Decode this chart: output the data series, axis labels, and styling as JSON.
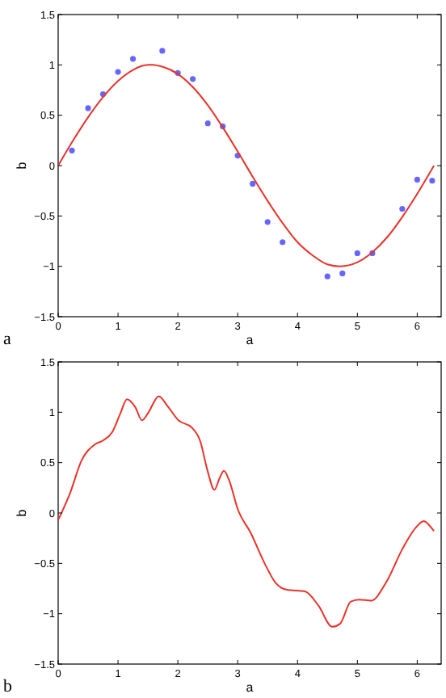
{
  "chart_data": [
    {
      "type": "scatter",
      "xlabel": "a",
      "ylabel": "b",
      "xlim": [
        0,
        6.4
      ],
      "ylim": [
        -1.5,
        1.5
      ],
      "xticks": [
        0,
        1,
        2,
        3,
        4,
        5,
        6
      ],
      "yticks": [
        -1.5,
        -1,
        -0.5,
        0,
        0.5,
        1,
        1.5
      ],
      "grid": false,
      "annotations": [
        "a"
      ],
      "series": [
        {
          "color": "#6666ff",
          "marker": "circle",
          "x": [
            0.23,
            0.5,
            0.75,
            1,
            1.25,
            1.74,
            2,
            2.25,
            2.5,
            2.75,
            3,
            3.25,
            3.5,
            3.75,
            4.5,
            4.75,
            5,
            5.25,
            5.75,
            6,
            6.25
          ],
          "values": [
            0.15,
            0.57,
            0.71,
            0.93,
            1.06,
            1.14,
            0.92,
            0.86,
            0.42,
            0.39,
            0.1,
            -0.18,
            -0.56,
            -0.76,
            -1.1,
            -1.07,
            -0.87,
            -0.87,
            -0.43,
            -0.14,
            -0.15
          ]
        },
        {
          "type": "line",
          "color": "#e8332a",
          "x": [
            0,
            0.25,
            0.5,
            0.75,
            1,
            1.25,
            1.5,
            1.57,
            1.75,
            2,
            2.25,
            2.5,
            2.75,
            3,
            3.25,
            3.5,
            3.75,
            4,
            4.25,
            4.5,
            4.71,
            5,
            5.25,
            5.5,
            5.75,
            6,
            6.28
          ],
          "values": [
            0,
            0.25,
            0.48,
            0.68,
            0.84,
            0.95,
            1,
            1,
            0.98,
            0.91,
            0.78,
            0.6,
            0.38,
            0.14,
            -0.11,
            -0.35,
            -0.57,
            -0.76,
            -0.89,
            -0.98,
            -1,
            -0.96,
            -0.86,
            -0.71,
            -0.51,
            -0.28,
            0
          ]
        }
      ]
    },
    {
      "type": "line",
      "xlabel": "a",
      "ylabel": "b",
      "xlim": [
        0,
        6.4
      ],
      "ylim": [
        -1.5,
        1.5
      ],
      "xticks": [
        0,
        1,
        2,
        3,
        4,
        5,
        6
      ],
      "yticks": [
        -1.5,
        -1,
        -0.5,
        0,
        0.5,
        1,
        1.5
      ],
      "grid": false,
      "annotations": [
        "b"
      ],
      "series": [
        {
          "color": "#e8332a",
          "x": [
            0,
            0.2,
            0.39,
            0.61,
            0.75,
            0.9,
            1.04,
            1.15,
            1.29,
            1.4,
            1.51,
            1.68,
            1.83,
            2.01,
            2.23,
            2.37,
            2.5,
            2.61,
            2.7,
            2.77,
            2.86,
            3,
            3.22,
            3.45,
            3.63,
            3.81,
            4.13,
            4.35,
            4.58,
            4.71,
            4.89,
            5.03,
            5.23,
            5.48,
            5.75,
            5.97,
            6.11,
            6.24,
            6.28
          ],
          "values": [
            -0.07,
            0.2,
            0.52,
            0.68,
            0.72,
            0.8,
            0.99,
            1.13,
            1.05,
            0.92,
            1,
            1.16,
            1.06,
            0.92,
            0.85,
            0.72,
            0.41,
            0.23,
            0.35,
            0.42,
            0.32,
            0.04,
            -0.2,
            -0.5,
            -0.69,
            -0.76,
            -0.78,
            -0.92,
            -1.13,
            -1.1,
            -0.88,
            -0.86,
            -0.87,
            -0.69,
            -0.36,
            -0.15,
            -0.08,
            -0.15,
            -0.18
          ]
        }
      ]
    }
  ]
}
